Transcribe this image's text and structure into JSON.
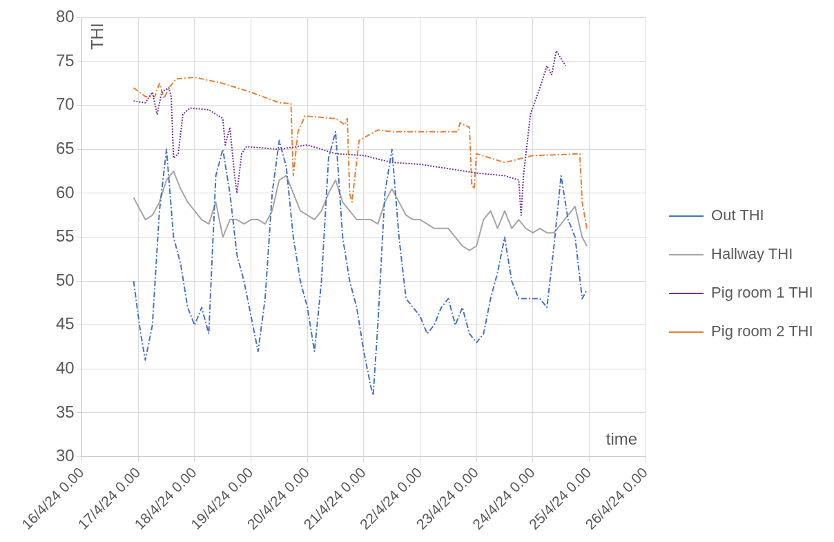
{
  "chart_data": {
    "type": "line",
    "xlabel": "time",
    "ylabel": "THI",
    "xlim": [
      "--04-16T00:00",
      "--04-26T00:00"
    ],
    "xticks": [
      {
        "value": "--04-16T00:00",
        "label": "16/4/24 0.00"
      },
      {
        "value": "--04-17T00:00",
        "label": "17/4/24 0.00"
      },
      {
        "value": "--04-18T00:00",
        "label": "18/4/24 0.00"
      },
      {
        "value": "--04-19T00:00",
        "label": "19/4/24 0.00"
      },
      {
        "value": "--04-20T00:00",
        "label": "20/4/24 0.00"
      },
      {
        "value": "--04-21T00:00",
        "label": "21/4/24 0.00"
      },
      {
        "value": "--04-22T00:00",
        "label": "22/4/24 0.00"
      },
      {
        "value": "--04-23T00:00",
        "label": "23/4/24 0.00"
      },
      {
        "value": "--04-24T00:00",
        "label": "24/4/24 0.00"
      },
      {
        "value": "--04-25T00:00",
        "label": "25/4/24 0.00"
      },
      {
        "value": "--04-26T00:00",
        "label": "26/4/24 0.00"
      }
    ],
    "ylim": [
      30,
      80
    ],
    "yticks": [
      30,
      35,
      40,
      45,
      50,
      55,
      60,
      65,
      70,
      75,
      80
    ],
    "grid": true,
    "legend": "right",
    "marker": "none",
    "series": [
      {
        "name": "Out THI",
        "color": "#4472c4",
        "line_style": "dashed",
        "x": [
          "--04-16T22:00",
          "--04-17T01:00",
          "--04-17T03:00",
          "--04-17T06:00",
          "--04-17T09:00",
          "--04-17T12:00",
          "--04-17T15:00",
          "--04-17T18:00",
          "--04-17T21:00",
          "--04-18T00:00",
          "--04-18T03:00",
          "--04-18T06:00",
          "--04-18T09:00",
          "--04-18T12:00",
          "--04-18T15:00",
          "--04-18T18:00",
          "--04-18T21:00",
          "--04-19T00:00",
          "--04-19T03:00",
          "--04-19T06:00",
          "--04-19T09:00",
          "--04-19T12:00",
          "--04-19T15:00",
          "--04-19T18:00",
          "--04-19T21:00",
          "--04-20T00:00",
          "--04-20T03:00",
          "--04-20T06:00",
          "--04-20T09:00",
          "--04-20T12:00",
          "--04-20T15:00",
          "--04-20T18:00",
          "--04-20T21:00",
          "--04-21T00:00",
          "--04-21T03:00",
          "--04-21T04:00",
          "--04-21T06:00",
          "--04-21T09:00",
          "--04-21T12:00",
          "--04-21T15:00",
          "--04-21T18:00",
          "--04-21T21:00",
          "--04-22T00:00",
          "--04-22T03:00",
          "--04-22T06:00",
          "--04-22T09:00",
          "--04-22T12:00",
          "--04-22T15:00",
          "--04-22T18:00",
          "--04-22T21:00",
          "--04-23T00:00",
          "--04-23T03:00",
          "--04-23T06:00",
          "--04-23T09:00",
          "--04-23T12:00",
          "--04-23T15:00",
          "--04-23T18:00",
          "--04-23T21:00",
          "--04-24T00:00",
          "--04-24T03:00",
          "--04-24T06:00",
          "--04-24T09:00",
          "--04-24T12:00",
          "--04-24T15:00",
          "--04-24T18:00",
          "--04-24T21:00",
          "--04-24T23:00"
        ],
        "values": [
          50,
          44,
          41,
          45,
          58,
          65,
          55,
          52,
          47,
          45,
          47,
          44,
          62,
          65,
          60,
          53,
          50,
          46,
          42,
          48,
          60,
          66,
          63,
          55,
          50,
          47,
          42,
          50,
          64,
          67,
          55,
          50,
          47,
          42,
          38,
          37,
          45,
          60,
          65,
          55,
          48,
          47,
          46,
          44,
          45,
          47,
          48,
          45,
          47,
          44,
          43,
          44,
          48,
          51,
          55,
          50,
          48,
          48,
          48,
          48,
          47,
          54,
          62,
          57,
          55,
          48,
          49
        ]
      },
      {
        "name": "Hallway THI",
        "color": "#a5a5a5",
        "line_style": "solid",
        "x": [
          "--04-16T22:00",
          "--04-17T01:00",
          "--04-17T03:00",
          "--04-17T06:00",
          "--04-17T09:00",
          "--04-17T12:00",
          "--04-17T15:00",
          "--04-17T18:00",
          "--04-17T21:00",
          "--04-18T00:00",
          "--04-18T03:00",
          "--04-18T06:00",
          "--04-18T09:00",
          "--04-18T12:00",
          "--04-18T15:00",
          "--04-18T18:00",
          "--04-18T21:00",
          "--04-19T00:00",
          "--04-19T03:00",
          "--04-19T06:00",
          "--04-19T09:00",
          "--04-19T12:00",
          "--04-19T15:00",
          "--04-19T18:00",
          "--04-19T21:00",
          "--04-20T00:00",
          "--04-20T03:00",
          "--04-20T06:00",
          "--04-20T09:00",
          "--04-20T12:00",
          "--04-20T15:00",
          "--04-20T18:00",
          "--04-20T21:00",
          "--04-21T00:00",
          "--04-21T03:00",
          "--04-21T06:00",
          "--04-21T09:00",
          "--04-21T12:00",
          "--04-21T15:00",
          "--04-21T18:00",
          "--04-21T21:00",
          "--04-22T00:00",
          "--04-22T03:00",
          "--04-22T06:00",
          "--04-22T09:00",
          "--04-22T12:00",
          "--04-22T15:00",
          "--04-22T18:00",
          "--04-22T21:00",
          "--04-23T00:00",
          "--04-23T03:00",
          "--04-23T06:00",
          "--04-23T09:00",
          "--04-23T12:00",
          "--04-23T15:00",
          "--04-23T18:00",
          "--04-23T21:00",
          "--04-24T00:00",
          "--04-24T03:00",
          "--04-24T06:00",
          "--04-24T09:00",
          "--04-24T12:00",
          "--04-24T15:00",
          "--04-24T18:00",
          "--04-24T21:00",
          "--04-24T23:00"
        ],
        "values": [
          59.5,
          58,
          57,
          57.5,
          59,
          61.5,
          62.5,
          60.5,
          59,
          58,
          57,
          56.5,
          59,
          55,
          57,
          57,
          56.5,
          57,
          57,
          56.5,
          58,
          61.5,
          62,
          60,
          58,
          57.5,
          57,
          58,
          60,
          61.5,
          59,
          58,
          57,
          57,
          57,
          56.5,
          59,
          60.5,
          59,
          57.5,
          57,
          57,
          56.5,
          56,
          56,
          56,
          55,
          54,
          53.5,
          54,
          57,
          58,
          56,
          58,
          56,
          57,
          56,
          55.5,
          56,
          55.5,
          55.5,
          56.5,
          57.5,
          58.5,
          55,
          54
        ]
      },
      {
        "name": "Pig room 1 THI",
        "color": "#7030a0",
        "line_style": "dotted",
        "x": [
          "--04-16T22:00",
          "--04-17T03:00",
          "--04-17T06:00",
          "--04-17T08:00",
          "--04-17T10:00",
          "--04-17T13:00",
          "--04-17T14:00",
          "--04-17T15:00",
          "--04-17T17:00",
          "--04-17T19:00",
          "--04-17T22:00",
          "--04-18T06:00",
          "--04-18T12:00",
          "--04-18T13:00",
          "--04-18T15:00",
          "--04-18T17:00",
          "--04-18T18:00",
          "--04-18T20:00",
          "--04-18T22:00",
          "--04-19T12:00",
          "--04-20T00:00",
          "--04-20T12:00",
          "--04-21T00:00",
          "--04-21T12:00",
          "--04-22T00:00",
          "--04-22T12:00",
          "--04-23T00:00",
          "--04-23T12:00",
          "--04-23T18:00",
          "--04-23T19:00",
          "--04-23T20:00",
          "--04-23T23:00",
          "--04-24T03:00",
          "--04-24T06:00",
          "--04-24T08:00",
          "--04-24T10:00",
          "--04-24T14:00"
        ],
        "values": [
          70.5,
          70.3,
          71.5,
          69,
          71.5,
          72,
          71,
          64,
          64.5,
          69,
          69.7,
          69.5,
          68.5,
          65.5,
          67.5,
          62,
          60,
          64.5,
          65.3,
          65,
          65.5,
          64.5,
          64.3,
          63.5,
          63.3,
          62.8,
          62.3,
          62,
          61.5,
          57.5,
          62,
          69,
          72,
          74.5,
          73.5,
          76.2,
          74.5
        ]
      },
      {
        "name": "Pig room 2 THI",
        "color": "#ed7d31",
        "line_style": "dashed",
        "x": [
          "--04-16T22:00",
          "--04-17T03:00",
          "--04-17T07:00",
          "--04-17T09:00",
          "--04-17T11:00",
          "--04-17T13:00",
          "--04-17T16:00",
          "--04-18T00:00",
          "--04-18T12:00",
          "--04-19T00:00",
          "--04-19T12:00",
          "--04-19T17:00",
          "--04-19T18:00",
          "--04-19T20:00",
          "--04-19T23:00",
          "--04-20T12:00",
          "--04-20T16:00",
          "--04-20T17:00",
          "--04-20T18:00",
          "--04-20T19:00",
          "--04-20T22:00",
          "--04-21T06:00",
          "--04-21T12:00",
          "--04-22T00:00",
          "--04-22T12:00",
          "--04-22T16:00",
          "--04-22T17:00",
          "--04-22T21:00",
          "--04-22T22:00",
          "--04-22T23:00",
          "--04-23T00:00",
          "--04-23T06:00",
          "--04-23T12:00",
          "--04-24T00:00",
          "--04-24T12:00",
          "--04-24T20:00",
          "--04-24T21:00",
          "--04-24T23:00"
        ],
        "values": [
          72,
          71,
          71,
          72.5,
          70.8,
          72,
          73,
          73.2,
          72.5,
          71.5,
          70.3,
          70.2,
          62,
          67,
          68.8,
          68.5,
          67.8,
          68.5,
          60,
          59,
          66,
          67.2,
          67,
          67,
          67,
          67,
          68,
          67.5,
          61,
          60.5,
          64.5,
          64,
          63.5,
          64.3,
          64.4,
          64.5,
          59,
          56
        ]
      }
    ]
  }
}
